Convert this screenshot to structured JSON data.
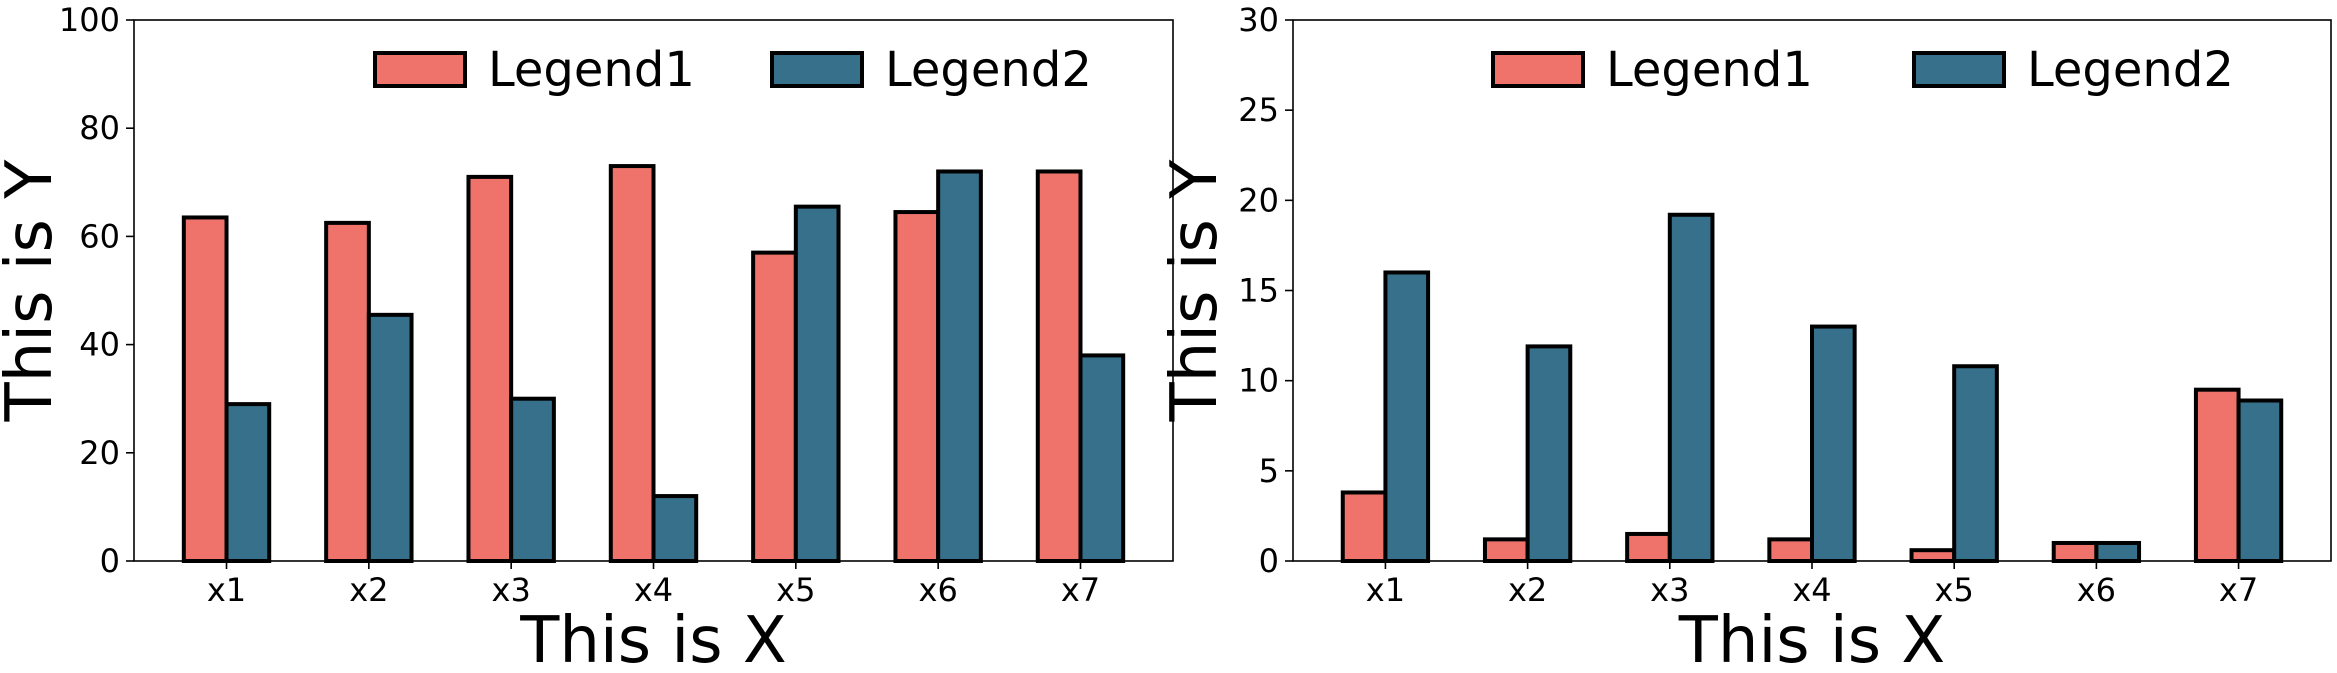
{
  "chart_data": [
    {
      "type": "bar",
      "categories": [
        "x1",
        "x2",
        "x3",
        "x4",
        "x5",
        "x6",
        "x7"
      ],
      "series": [
        {
          "name": "Legend1",
          "color": "#ef736b",
          "values": [
            63.5,
            62.5,
            71,
            73,
            57,
            64.5,
            72
          ]
        },
        {
          "name": "Legend2",
          "color": "#36708a",
          "values": [
            29,
            45.5,
            30,
            12,
            65.5,
            72,
            38
          ]
        }
      ],
      "xlabel": "This is X",
      "ylabel": "This is Y",
      "ylim": [
        0,
        100
      ],
      "yticks": [
        0,
        20,
        40,
        60,
        80,
        100
      ],
      "grid": false,
      "legend_position": "top",
      "legend_columns": 2
    },
    {
      "type": "bar",
      "categories": [
        "x1",
        "x2",
        "x3",
        "x4",
        "x5",
        "x6",
        "x7"
      ],
      "series": [
        {
          "name": "Legend1",
          "color": "#ef736b",
          "values": [
            3.8,
            1.2,
            1.5,
            1.2,
            0.6,
            1.0,
            9.5
          ]
        },
        {
          "name": "Legend2",
          "color": "#36708a",
          "values": [
            16,
            11.9,
            19.2,
            13,
            10.8,
            1.0,
            8.9
          ]
        }
      ],
      "xlabel": "This is X",
      "ylabel": "This is Y",
      "ylim": [
        0,
        30
      ],
      "yticks": [
        0,
        5,
        10,
        15,
        20,
        25,
        30
      ],
      "grid": false,
      "legend_position": "top",
      "legend_columns": 2
    }
  ]
}
